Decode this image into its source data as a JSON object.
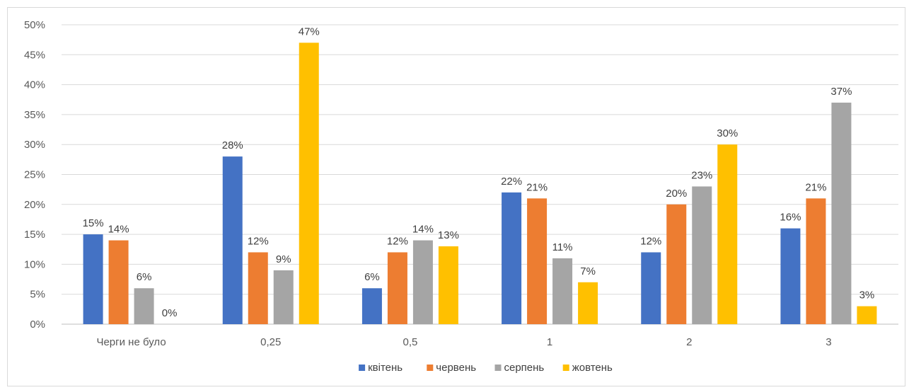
{
  "chart_data": {
    "type": "bar",
    "categories": [
      "Черги не було",
      "0,25",
      "0,5",
      "1",
      "2",
      "3"
    ],
    "series": [
      {
        "name": "квітень",
        "color": "#4472C4",
        "values": [
          15,
          28,
          6,
          22,
          12,
          16
        ]
      },
      {
        "name": "червень",
        "color": "#ED7D31",
        "values": [
          14,
          12,
          12,
          21,
          20,
          21
        ]
      },
      {
        "name": "серпень",
        "color": "#A5A5A5",
        "values": [
          6,
          9,
          14,
          11,
          23,
          37
        ]
      },
      {
        "name": "жовтень",
        "color": "#FFC000",
        "values": [
          0,
          47,
          13,
          7,
          30,
          3
        ]
      }
    ],
    "ylim": [
      0,
      50
    ],
    "y_ticks": [
      "0%",
      "5%",
      "10%",
      "15%",
      "20%",
      "25%",
      "30%",
      "35%",
      "40%",
      "45%",
      "50%"
    ],
    "value_suffix": "%",
    "grid": true,
    "legend_position": "bottom"
  }
}
